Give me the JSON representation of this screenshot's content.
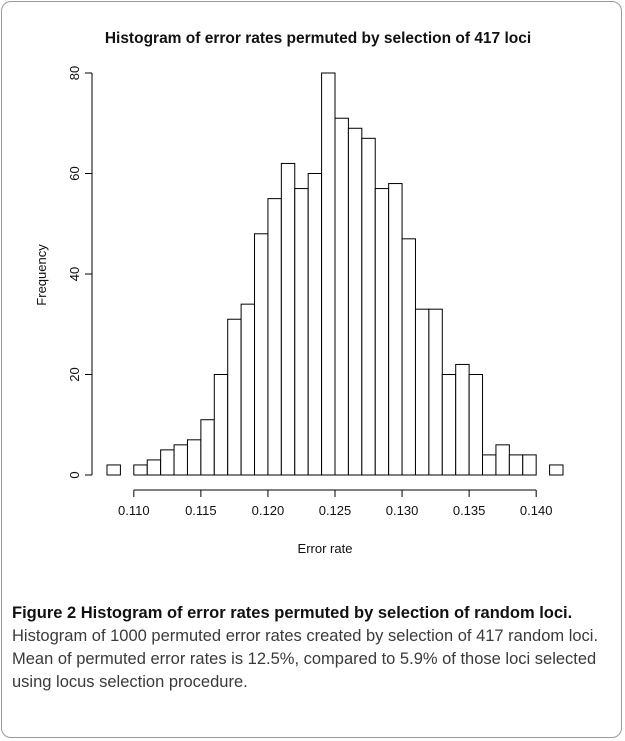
{
  "chart_data": {
    "type": "bar",
    "title": "Histogram of error rates permuted by selection of 417 loci",
    "xlabel": "Error rate",
    "ylabel": "Frequency",
    "bin_width": 0.001,
    "bin_starts": [
      0.108,
      0.109,
      0.11,
      0.111,
      0.112,
      0.113,
      0.114,
      0.115,
      0.116,
      0.117,
      0.118,
      0.119,
      0.12,
      0.121,
      0.122,
      0.123,
      0.124,
      0.125,
      0.126,
      0.127,
      0.128,
      0.129,
      0.13,
      0.131,
      0.132,
      0.133,
      0.134,
      0.135,
      0.136,
      0.137,
      0.138,
      0.139,
      0.14,
      0.141
    ],
    "values": [
      2,
      0,
      2,
      3,
      5,
      6,
      7,
      11,
      20,
      31,
      34,
      48,
      55,
      62,
      57,
      60,
      80,
      71,
      69,
      67,
      57,
      58,
      47,
      33,
      33,
      20,
      22,
      20,
      4,
      6,
      4,
      4,
      0,
      2
    ],
    "xlim": [
      0.108,
      0.142
    ],
    "ylim": [
      0,
      80
    ],
    "xticks": [
      0.11,
      0.115,
      0.12,
      0.125,
      0.13,
      0.135,
      0.14
    ],
    "xtick_labels": [
      "0.110",
      "0.115",
      "0.120",
      "0.125",
      "0.130",
      "0.135",
      "0.140"
    ],
    "yticks": [
      0,
      20,
      40,
      60,
      80
    ],
    "ytick_labels": [
      "0",
      "20",
      "40",
      "60",
      "80"
    ],
    "grid": false,
    "bar_fill": "#ffffff",
    "bar_stroke": "#000000"
  },
  "caption": {
    "label": "Figure 2 Histogram of error rates permuted by selection of random loci.",
    "text": " Histogram of 1000 permuted error rates created by selection of 417 random loci. Mean of permuted error rates is 12.5%, compared to 5.9% of those loci selected using locus selection procedure."
  }
}
